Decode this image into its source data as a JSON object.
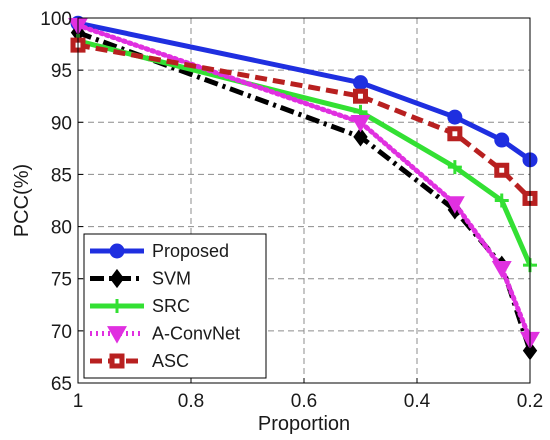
{
  "chart_data": {
    "type": "line",
    "title": "",
    "xlabel": "Proportion",
    "ylabel": "PCC(%)",
    "x": [
      1,
      0.5,
      0.333,
      0.25,
      0.2
    ],
    "xlim": [
      1,
      0.2
    ],
    "xscale": "reciprocal",
    "ylim": [
      65,
      100
    ],
    "xticks": [
      1,
      0.8,
      0.6,
      0.4,
      0.2
    ],
    "xtick_labels": [
      "1",
      "0.8",
      "0.6",
      "0.4",
      "0.2"
    ],
    "yticks": [
      65,
      70,
      75,
      80,
      85,
      90,
      95,
      100
    ],
    "grid": true,
    "grid_style": "dashed",
    "legend_position": "bottom-left",
    "series": [
      {
        "name": "Proposed",
        "values": [
          99.5,
          93.8,
          90.5,
          88.3,
          86.4
        ],
        "color": "#1f2fe0",
        "dash": "solid",
        "marker": "circle"
      },
      {
        "name": "SVM",
        "values": [
          98.6,
          88.6,
          81.6,
          76.3,
          68.1
        ],
        "color": "#000000",
        "dash": "dashdot",
        "marker": "diamond"
      },
      {
        "name": "SRC",
        "values": [
          97.8,
          91.0,
          85.7,
          82.5,
          76.3
        ],
        "color": "#33e033",
        "dash": "solid",
        "marker": "plus"
      },
      {
        "name": "A-ConvNet",
        "values": [
          99.3,
          90.0,
          82.2,
          76.0,
          69.2
        ],
        "color": "#e030e0",
        "dash": "dotted",
        "marker": "triangle-down"
      },
      {
        "name": "ASC",
        "values": [
          97.4,
          92.5,
          88.9,
          85.4,
          82.7
        ],
        "color": "#b82020",
        "dash": "dashed",
        "marker": "square"
      }
    ]
  }
}
